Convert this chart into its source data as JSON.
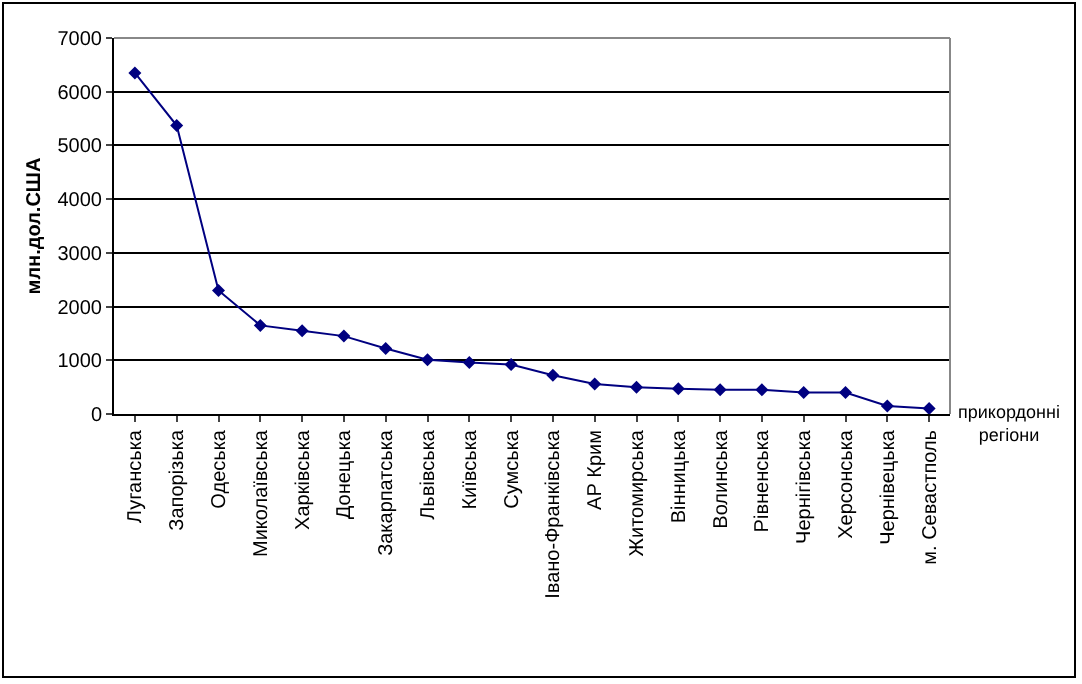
{
  "chart_data": {
    "type": "line",
    "ylabel": "млн.дол.США",
    "xlabel": "прикордонні регіони",
    "categories": [
      "Луганська",
      "Запорізька",
      "Одеська",
      "Миколаївська",
      "Харківська",
      "Донецька",
      "Закарпатська",
      "Львівська",
      "Київська",
      "Сумська",
      "Івано-Франківська",
      "АР Крим",
      "Житомирська",
      "Вінницька",
      "Волинська",
      "Рівненська",
      "Чернігівська",
      "Херсонська",
      "Чернівецька",
      "м. Севастполь"
    ],
    "series": [
      {
        "color": "#000080",
        "values": [
          6350,
          5370,
          2300,
          1650,
          1550,
          1450,
          1220,
          1010,
          960,
          920,
          720,
          560,
          500,
          470,
          450,
          450,
          400,
          400,
          150,
          100
        ]
      }
    ],
    "ylim": [
      0,
      7000
    ],
    "yticks": [
      0,
      1000,
      2000,
      3000,
      4000,
      5000,
      6000,
      7000
    ],
    "grid": "y",
    "marker": "diamond",
    "line_style": "solid"
  }
}
